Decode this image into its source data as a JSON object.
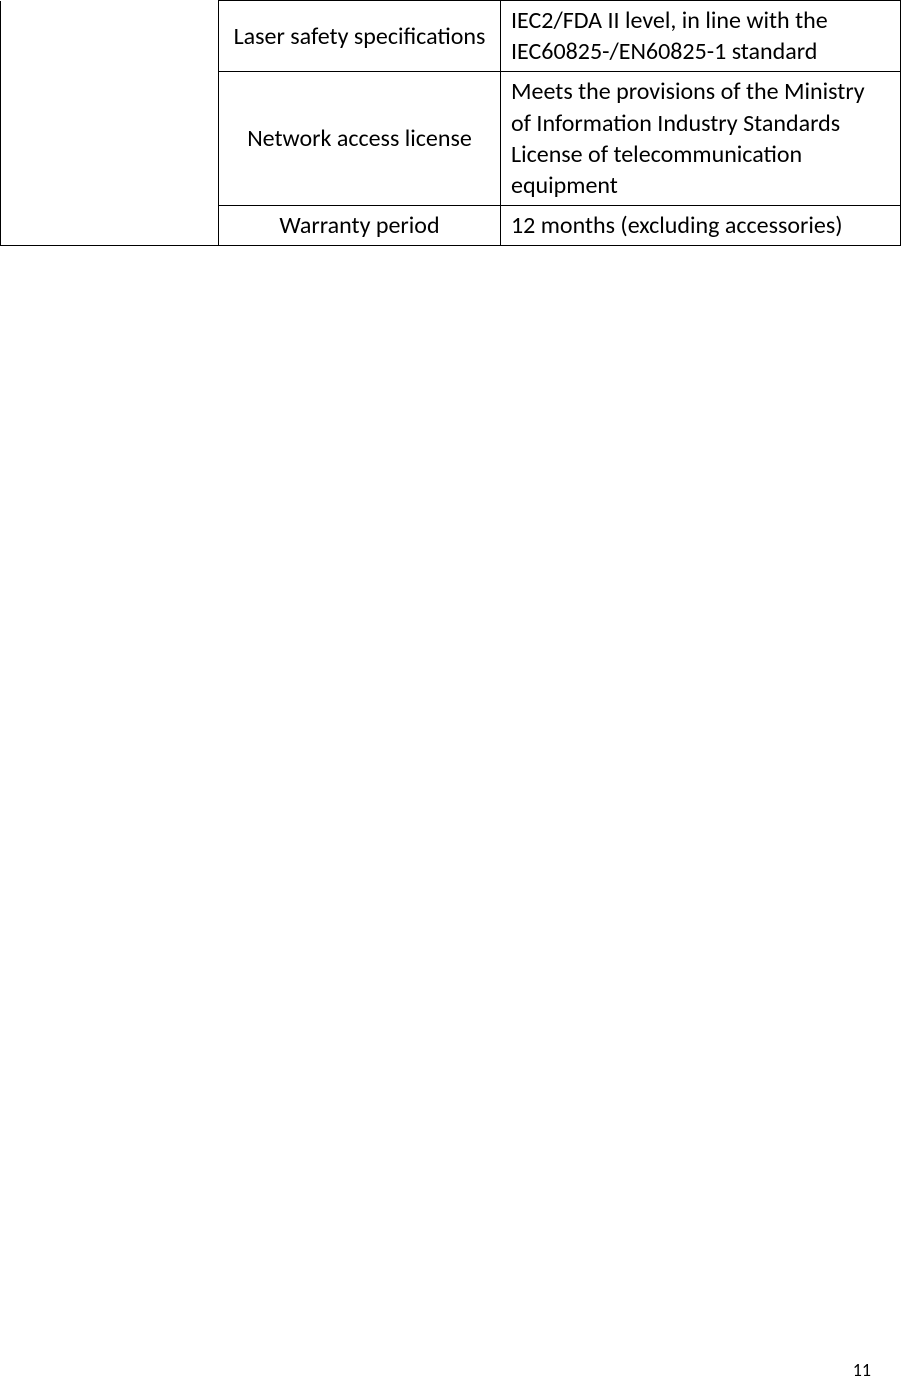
{
  "table": {
    "rows": [
      {
        "label": "Laser safety specifications",
        "value": "IEC2/FDA II level, in line with the IEC60825-/EN60825-1 standard"
      },
      {
        "label": "Network access license",
        "value": "Meets the provisions of the Ministry of Information Industry Standards License of telecommunication equipment"
      },
      {
        "label": "Warranty period",
        "value": "12 months (excluding accessories)"
      }
    ]
  },
  "page_number": "11"
}
